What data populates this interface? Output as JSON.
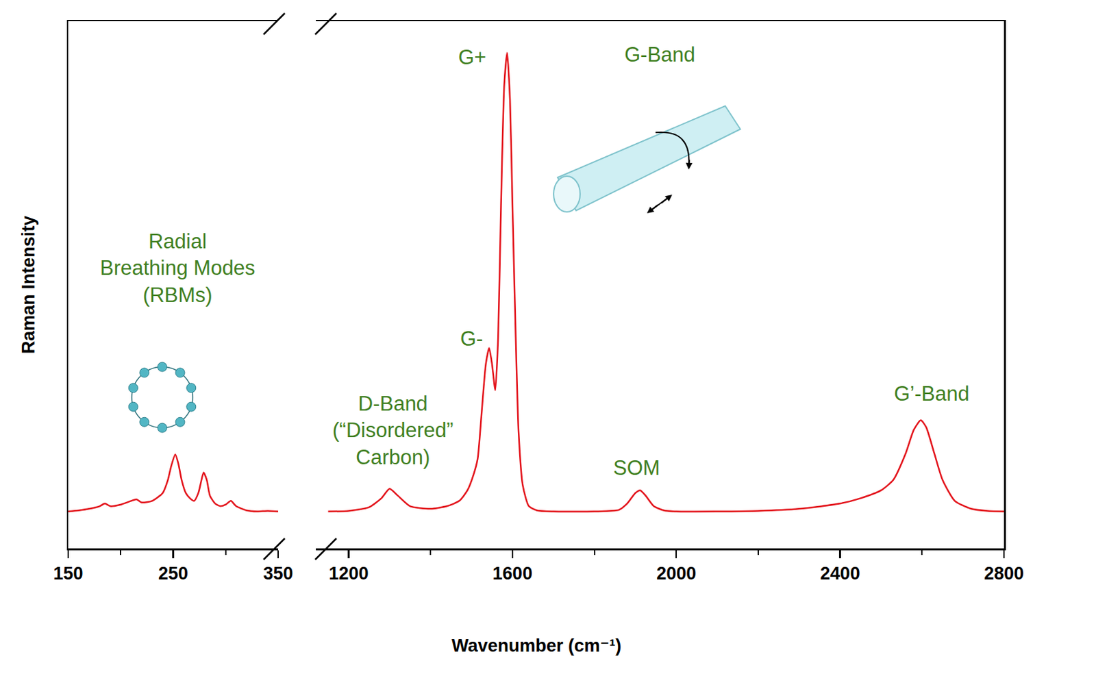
{
  "chart_data": {
    "type": "line",
    "x_label": "Wavenumber (cm⁻¹)",
    "y_label": "Raman Intensity",
    "color": "#e3141c",
    "tick_labels": "x",
    "ylim": [
      0,
      1
    ],
    "panels": [
      {
        "xlim": [
          150,
          350
        ],
        "xticks": [
          150,
          250,
          350
        ],
        "x": [
          150,
          160,
          170,
          180,
          185,
          190,
          200,
          210,
          215,
          220,
          230,
          240,
          245,
          248,
          252,
          255,
          258,
          262,
          266,
          270,
          274,
          277,
          279,
          282,
          285,
          290,
          295,
          300,
          305,
          310,
          320,
          330,
          340,
          350
        ],
        "values": [
          0.07,
          0.072,
          0.075,
          0.08,
          0.085,
          0.08,
          0.083,
          0.09,
          0.093,
          0.087,
          0.09,
          0.105,
          0.13,
          0.155,
          0.178,
          0.16,
          0.13,
          0.105,
          0.095,
          0.09,
          0.105,
          0.13,
          0.144,
          0.13,
          0.1,
          0.085,
          0.08,
          0.083,
          0.09,
          0.08,
          0.072,
          0.07,
          0.071,
          0.07
        ]
      },
      {
        "xlim": [
          1120,
          2800
        ],
        "xticks": [
          1200,
          1600,
          2000,
          2400,
          2800
        ],
        "x": [
          1150,
          1200,
          1250,
          1280,
          1300,
          1320,
          1350,
          1400,
          1440,
          1470,
          1490,
          1505,
          1515,
          1525,
          1535,
          1543,
          1550,
          1558,
          1565,
          1572,
          1580,
          1587,
          1594,
          1600,
          1608,
          1615,
          1625,
          1640,
          1660,
          1700,
          1800,
          1860,
          1880,
          1900,
          1912,
          1925,
          1945,
          1970,
          2000,
          2100,
          2200,
          2300,
          2400,
          2450,
          2500,
          2530,
          2560,
          2580,
          2597,
          2610,
          2630,
          2650,
          2680,
          2720,
          2760,
          2800
        ],
        "values": [
          0.07,
          0.071,
          0.078,
          0.095,
          0.113,
          0.1,
          0.08,
          0.075,
          0.08,
          0.09,
          0.11,
          0.14,
          0.17,
          0.26,
          0.35,
          0.38,
          0.35,
          0.3,
          0.4,
          0.65,
          0.88,
          0.94,
          0.85,
          0.65,
          0.4,
          0.22,
          0.12,
          0.08,
          0.072,
          0.07,
          0.07,
          0.073,
          0.085,
          0.105,
          0.11,
          0.1,
          0.08,
          0.072,
          0.07,
          0.07,
          0.071,
          0.075,
          0.085,
          0.095,
          0.11,
          0.13,
          0.18,
          0.225,
          0.243,
          0.23,
          0.18,
          0.13,
          0.09,
          0.075,
          0.071,
          0.07
        ]
      }
    ],
    "annotations": [
      "Radial Breathing Modes (RBMs)",
      "D-Band (“Disordered” Carbon)",
      "G+",
      "G-",
      "G-Band",
      "SOM",
      "G’-Band"
    ]
  }
}
